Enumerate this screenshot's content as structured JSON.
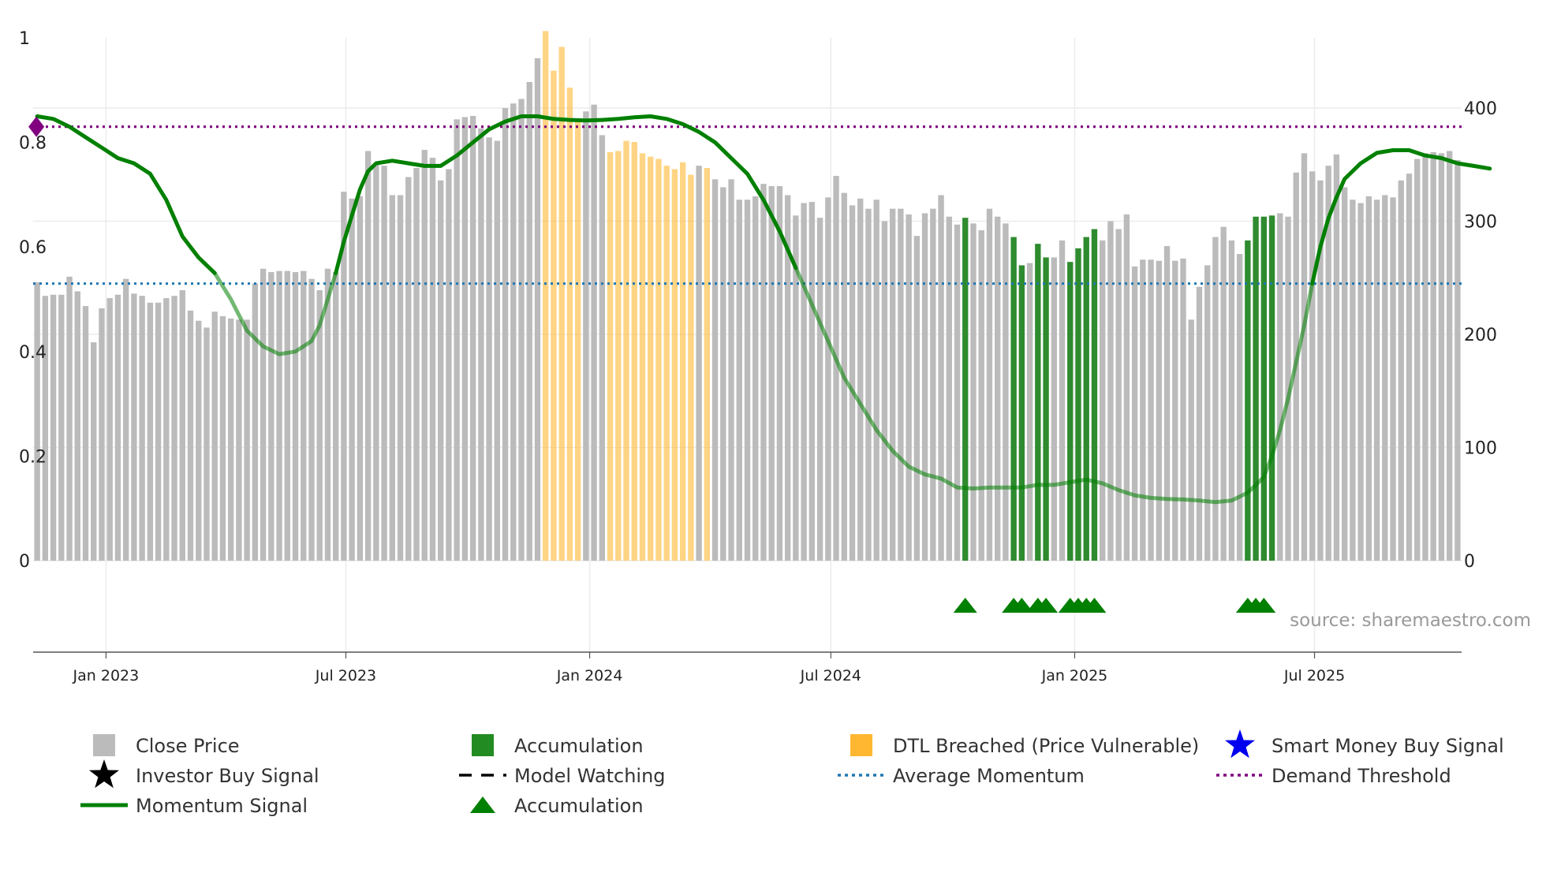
{
  "chart_data": {
    "type": "bar",
    "title": "",
    "source": "source: sharemaestro.com",
    "left_axis": {
      "ylim": [
        0,
        1
      ],
      "ticks": [
        "0",
        "0.2",
        "0.4",
        "0.6",
        "0.8",
        "1"
      ]
    },
    "right_axis": {
      "ylim": [
        0,
        462
      ],
      "ticks": [
        "0",
        "100",
        "200",
        "300",
        "400"
      ]
    },
    "x_axis": {
      "start": "2022-11-07",
      "end": "2025-10-20",
      "ticks": [
        {
          "date": "2023-01-01",
          "label": "Jan 2023"
        },
        {
          "date": "2023-07-01",
          "label": "Jul 2023"
        },
        {
          "date": "2024-01-01",
          "label": "Jan 2024"
        },
        {
          "date": "2024-07-01",
          "label": "Jul 2024"
        },
        {
          "date": "2025-01-01",
          "label": "Jan 2025"
        },
        {
          "date": "2025-07-01",
          "label": "Jul 2025"
        }
      ]
    },
    "colors": {
      "close": "#bbbbbb",
      "accumulation": "#2e8b2e",
      "dtl": "#ffb732",
      "momentum": "#008000",
      "average": "#1f77b4",
      "demand": "#800080",
      "smart_money": "#0000ee",
      "investor": "#000000",
      "triangle": "#008000"
    },
    "average_momentum": 0.53,
    "demand_threshold": 0.83,
    "close_price_weekly": [
      246,
      234,
      235,
      235,
      251,
      238,
      225,
      193,
      223,
      232,
      235,
      249,
      236,
      234,
      228,
      228,
      232,
      234,
      239,
      221,
      212,
      206,
      220,
      216,
      214,
      213,
      213,
      245,
      258,
      255,
      256,
      256,
      255,
      256,
      249,
      239,
      258,
      255,
      326,
      320,
      322,
      362,
      350,
      349,
      323,
      323,
      339,
      347,
      363,
      356,
      336,
      346,
      390,
      392,
      393,
      382,
      374,
      371,
      400,
      404,
      408,
      423,
      444,
      468,
      433,
      454,
      418,
      389,
      397,
      403,
      376,
      361,
      362,
      371,
      370,
      360,
      357,
      355,
      349,
      346,
      352,
      341,
      349,
      347,
      337,
      330,
      337,
      319,
      319,
      322,
      333,
      331,
      331,
      323,
      305,
      316,
      317,
      303,
      321,
      340,
      325,
      314,
      320,
      311,
      319,
      300,
      311,
      311,
      306,
      287,
      307,
      311,
      323,
      304,
      297,
      303,
      298,
      292,
      311,
      304,
      298,
      286,
      261,
      263,
      280,
      268,
      268,
      283,
      264,
      276,
      286,
      293,
      283,
      300,
      293,
      306,
      260,
      266,
      266,
      265,
      278,
      265,
      267,
      213,
      242,
      261,
      286,
      295,
      283,
      271,
      283,
      304,
      304,
      305,
      307,
      304,
      343,
      360,
      344,
      336,
      349,
      359,
      330,
      319,
      316,
      322,
      319,
      323,
      321,
      336,
      342,
      355,
      360,
      361,
      360,
      362,
      354
    ],
    "accumulation_weeks": [
      115,
      121,
      122,
      124,
      125,
      128,
      129,
      130,
      131,
      150,
      151,
      152,
      153
    ],
    "dtl_weeks": [
      63,
      64,
      65,
      66,
      67,
      71,
      72,
      73,
      74,
      75,
      76,
      77,
      78,
      79,
      80,
      81,
      83
    ],
    "triangle_weeks": [
      115,
      121,
      122,
      124,
      125,
      128,
      129,
      130,
      131,
      150,
      151,
      152
    ],
    "momentum_points": [
      [
        0,
        0.85
      ],
      [
        2,
        0.845
      ],
      [
        4,
        0.83
      ],
      [
        6,
        0.81
      ],
      [
        8,
        0.79
      ],
      [
        10,
        0.77
      ],
      [
        12,
        0.76
      ],
      [
        14,
        0.74
      ],
      [
        16,
        0.69
      ],
      [
        18,
        0.62
      ],
      [
        20,
        0.58
      ],
      [
        22,
        0.55
      ],
      [
        24,
        0.5
      ],
      [
        26,
        0.44
      ],
      [
        28,
        0.41
      ],
      [
        30,
        0.395
      ],
      [
        32,
        0.4
      ],
      [
        34,
        0.42
      ],
      [
        35,
        0.45
      ],
      [
        36,
        0.5
      ],
      [
        37,
        0.55
      ],
      [
        38,
        0.61
      ],
      [
        39,
        0.66
      ],
      [
        40,
        0.71
      ],
      [
        41,
        0.745
      ],
      [
        42,
        0.76
      ],
      [
        44,
        0.765
      ],
      [
        46,
        0.76
      ],
      [
        48,
        0.755
      ],
      [
        50,
        0.755
      ],
      [
        52,
        0.775
      ],
      [
        54,
        0.8
      ],
      [
        56,
        0.825
      ],
      [
        58,
        0.84
      ],
      [
        60,
        0.85
      ],
      [
        62,
        0.85
      ],
      [
        64,
        0.845
      ],
      [
        66,
        0.843
      ],
      [
        68,
        0.842
      ],
      [
        70,
        0.843
      ],
      [
        72,
        0.845
      ],
      [
        74,
        0.848
      ],
      [
        76,
        0.85
      ],
      [
        78,
        0.845
      ],
      [
        80,
        0.835
      ],
      [
        82,
        0.82
      ],
      [
        84,
        0.8
      ],
      [
        86,
        0.77
      ],
      [
        88,
        0.74
      ],
      [
        90,
        0.69
      ],
      [
        92,
        0.63
      ],
      [
        94,
        0.56
      ],
      [
        96,
        0.49
      ],
      [
        98,
        0.42
      ],
      [
        100,
        0.35
      ],
      [
        102,
        0.3
      ],
      [
        104,
        0.25
      ],
      [
        106,
        0.21
      ],
      [
        108,
        0.18
      ],
      [
        110,
        0.165
      ],
      [
        112,
        0.157
      ],
      [
        114,
        0.14
      ],
      [
        116,
        0.138
      ],
      [
        118,
        0.14
      ],
      [
        120,
        0.14
      ],
      [
        122,
        0.14
      ],
      [
        124,
        0.145
      ],
      [
        126,
        0.145
      ],
      [
        128,
        0.15
      ],
      [
        130,
        0.155
      ],
      [
        132,
        0.148
      ],
      [
        134,
        0.135
      ],
      [
        136,
        0.125
      ],
      [
        138,
        0.12
      ],
      [
        140,
        0.118
      ],
      [
        142,
        0.117
      ],
      [
        144,
        0.115
      ],
      [
        146,
        0.112
      ],
      [
        148,
        0.115
      ],
      [
        150,
        0.13
      ],
      [
        152,
        0.16
      ],
      [
        153,
        0.2
      ],
      [
        154,
        0.25
      ],
      [
        155,
        0.31
      ],
      [
        156,
        0.38
      ],
      [
        157,
        0.45
      ],
      [
        158,
        0.53
      ],
      [
        159,
        0.6
      ],
      [
        160,
        0.655
      ],
      [
        161,
        0.695
      ],
      [
        162,
        0.73
      ],
      [
        164,
        0.76
      ],
      [
        166,
        0.78
      ],
      [
        168,
        0.785
      ],
      [
        170,
        0.785
      ],
      [
        172,
        0.775
      ],
      [
        174,
        0.77
      ],
      [
        176,
        0.76
      ],
      [
        178,
        0.755
      ],
      [
        180,
        0.75
      ]
    ]
  },
  "legend": [
    {
      "name": "legend-close-price",
      "label": "Close Price",
      "symbol": "square",
      "color": "#bbbbbb"
    },
    {
      "name": "legend-accumulation",
      "label": "Accumulation",
      "symbol": "square",
      "color": "#228b22"
    },
    {
      "name": "legend-dtl-breached",
      "label": "DTL Breached (Price Vulnerable)",
      "symbol": "square",
      "color": "#ffb732"
    },
    {
      "name": "legend-smart-money",
      "label": "Smart Money Buy Signal",
      "symbol": "star",
      "color": "#0000ee"
    },
    {
      "name": "legend-investor-buy",
      "label": "Investor Buy Signal",
      "symbol": "star",
      "color": "#000000"
    },
    {
      "name": "legend-model-watching",
      "label": "Model Watching",
      "symbol": "dash",
      "color": "#000000"
    },
    {
      "name": "legend-average-momentum",
      "label": "Average Momentum",
      "symbol": "dot",
      "color": "#1f77b4"
    },
    {
      "name": "legend-demand-threshold",
      "label": "Demand Threshold",
      "symbol": "dot",
      "color": "#800080"
    },
    {
      "name": "legend-momentum-signal",
      "label": "Momentum Signal",
      "symbol": "line",
      "color": "#008000"
    },
    {
      "name": "legend-accumulation-triangle",
      "label": "Accumulation",
      "symbol": "triangle",
      "color": "#008000"
    }
  ]
}
